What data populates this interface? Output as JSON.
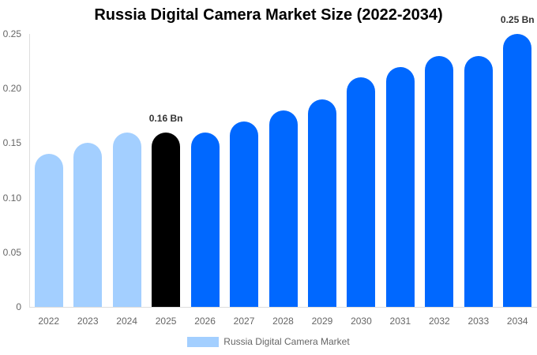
{
  "chart_data": {
    "type": "bar",
    "title": "Russia Digital Camera Market Size (2022-2034)",
    "xlabel": "",
    "ylabel": "",
    "ylim": [
      0,
      0.25
    ],
    "yticks": [
      "0",
      "0.05",
      "0.10",
      "0.15",
      "0.20",
      "0.25"
    ],
    "categories": [
      "2022",
      "2023",
      "2024",
      "2025",
      "2026",
      "2027",
      "2028",
      "2029",
      "2030",
      "2031",
      "2032",
      "2033",
      "2034"
    ],
    "series": [
      {
        "name": "Russia Digital Camera Market",
        "values": [
          0.14,
          0.15,
          0.16,
          0.16,
          0.16,
          0.17,
          0.18,
          0.19,
          0.21,
          0.22,
          0.23,
          0.23,
          0.25
        ]
      }
    ],
    "bar_colors": [
      "#a3cfff",
      "#a3cfff",
      "#a3cfff",
      "#000000",
      "#0068ff",
      "#0068ff",
      "#0068ff",
      "#0068ff",
      "#0068ff",
      "#0068ff",
      "#0068ff",
      "#0068ff",
      "#0068ff"
    ],
    "annotations": [
      {
        "category": "2025",
        "label": "0.16 Bn"
      },
      {
        "category": "2034",
        "label": "0.25 Bn"
      }
    ],
    "legend": {
      "position": "bottom",
      "label": "Russia Digital Camera Market",
      "color": "#a3cfff"
    },
    "grid": false
  }
}
